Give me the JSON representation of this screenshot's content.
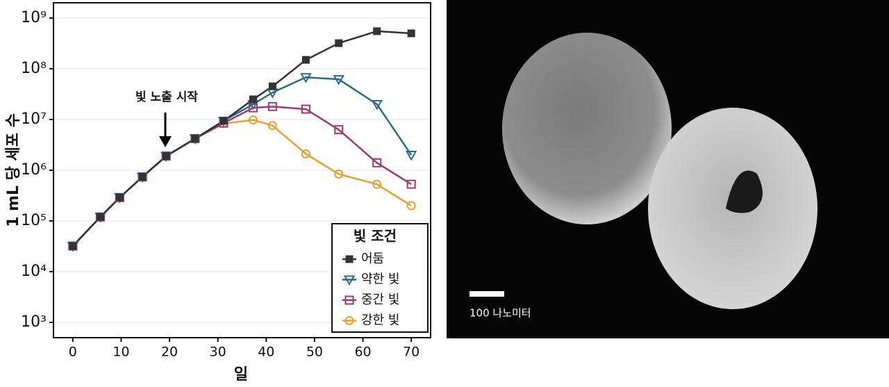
{
  "chart_data": {
    "type": "line",
    "annotation": "빛 노출 시작",
    "x_label": "일",
    "y_label": "1 mL 당 세포 수",
    "log_y": true,
    "xlim": [
      -4,
      74
    ],
    "ylim": [
      500,
      2000000000
    ],
    "xticks": [
      0,
      10,
      20,
      30,
      40,
      50,
      60,
      70
    ],
    "yticks": [
      {
        "value": 1000,
        "label": "10³"
      },
      {
        "value": 10000,
        "label": "10⁴"
      },
      {
        "value": 100000,
        "label": "10⁵"
      },
      {
        "value": 1000000,
        "label": "10⁶"
      },
      {
        "value": 10000000,
        "label": "10⁷"
      },
      {
        "value": 100000000,
        "label": "10⁸"
      },
      {
        "value": 1000000000,
        "label": "10⁹"
      }
    ],
    "grid": true,
    "legend": "lower right",
    "legend_title": "빛 조건",
    "x": [
      0,
      5.7,
      9.7,
      14.4,
      19.3,
      25.3,
      31.2,
      37.3,
      41.3,
      48.2,
      55,
      62.9,
      70
    ],
    "series": [
      {
        "name": "어둠",
        "color": "#333333",
        "marker": "square-filled",
        "values": [
          32000,
          120000,
          290000,
          740000,
          1900000,
          4200000,
          9400000,
          25000000,
          45000000,
          150000000,
          320000000,
          550000000,
          500000000
        ]
      },
      {
        "name": "약한 빛",
        "color": "#2a6b8a",
        "marker": "triangle-down",
        "values": [
          32000,
          120000,
          290000,
          740000,
          1900000,
          4200000,
          9400000,
          20000000,
          34000000,
          68000000,
          62000000,
          20000000,
          2000000
        ]
      },
      {
        "name": "중간 빛",
        "color": "#a03a6e",
        "marker": "square",
        "values": [
          32000,
          120000,
          290000,
          740000,
          1900000,
          4200000,
          8500000,
          17000000,
          18000000,
          16000000,
          6300000,
          1400000,
          530000
        ]
      },
      {
        "name": "강한 빛",
        "color": "#e8a030",
        "marker": "circle",
        "values": [
          32000,
          120000,
          290000,
          740000,
          1900000,
          4200000,
          8300000,
          9800000,
          7600000,
          2100000,
          840000,
          530000,
          200000
        ]
      }
    ]
  },
  "image": {
    "scale_bar_label": "100 나노미터"
  }
}
